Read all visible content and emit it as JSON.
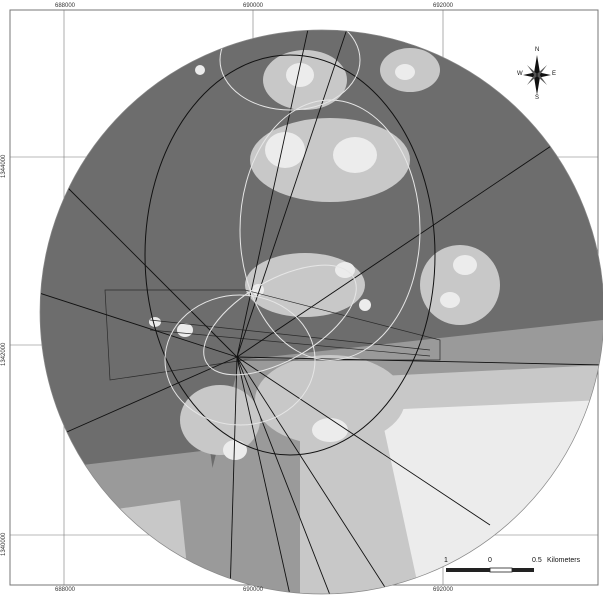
{
  "map": {
    "colors": {
      "background": "#ffffff",
      "zone_dark": "#6d6d6d",
      "zone_mid": "#9a9a9a",
      "zone_light": "#c8c8c8",
      "zone_lightest": "#ececec",
      "lines": "#1a1a1a",
      "ellipses_light": "#e6e6e6"
    },
    "x_ticks": {
      "top": [
        "688000",
        "690000",
        "692000"
      ],
      "bottom": [
        "688000",
        "690000",
        "692000"
      ]
    },
    "y_ticks": [
      "1344000",
      "1342000",
      "1340000"
    ],
    "north_arrow": {
      "n": "N",
      "s": "S",
      "e": "E",
      "w": "W",
      "icon": "compass-rose-icon"
    },
    "scale_bar": {
      "left": "1",
      "mid": "0",
      "right": "0.5",
      "unit": "Kilometers"
    }
  }
}
